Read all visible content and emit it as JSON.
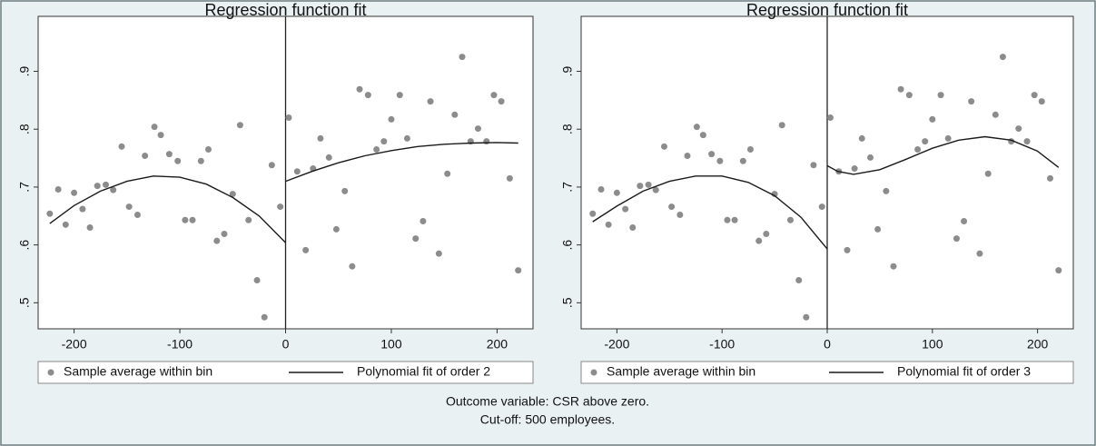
{
  "chart_data": [
    {
      "type": "scatter",
      "title": "Regression function fit",
      "xlim": [
        -234,
        234
      ],
      "ylim": [
        0.455,
        0.995
      ],
      "xticks": [
        -200,
        -100,
        0,
        100,
        200
      ],
      "yticks": [
        {
          "value": 0.5,
          "label": ".5"
        },
        {
          "value": 0.6,
          "label": ".6"
        },
        {
          "value": 0.7,
          "label": ".7"
        },
        {
          "value": 0.8,
          "label": ".8"
        },
        {
          "value": 0.9,
          "label": ".9"
        }
      ],
      "cutoff": 0,
      "legend": "bottom",
      "series": [
        {
          "name": "Sample average within bin",
          "type": "scatter",
          "color": "#8c8c8c",
          "x": [
            -223,
            -215,
            -208,
            -200,
            -192,
            -185,
            -178,
            -170,
            -163,
            -155,
            -148,
            -140,
            -133,
            -124,
            -118,
            -110,
            -102,
            -95,
            -88,
            -80,
            -73,
            -65,
            -58,
            -50,
            -43,
            -35,
            -27,
            -20,
            -13,
            -5,
            3,
            11,
            19,
            26,
            33,
            41,
            48,
            56,
            63,
            70,
            78,
            86,
            93,
            100,
            108,
            115,
            123,
            130,
            137,
            145,
            153,
            160,
            167,
            175,
            182,
            190,
            197,
            204,
            212,
            220
          ],
          "values": [
            0.654,
            0.696,
            0.635,
            0.69,
            0.662,
            0.63,
            0.702,
            0.704,
            0.695,
            0.77,
            0.666,
            0.652,
            0.754,
            0.804,
            0.79,
            0.757,
            0.745,
            0.643,
            0.643,
            0.745,
            0.765,
            0.607,
            0.619,
            0.688,
            0.807,
            0.643,
            0.539,
            0.475,
            0.738,
            0.666,
            0.82,
            0.727,
            0.591,
            0.732,
            0.784,
            0.751,
            0.627,
            0.693,
            0.563,
            0.869,
            0.859,
            0.765,
            0.779,
            0.817,
            0.859,
            0.784,
            0.611,
            0.641,
            0.848,
            0.585,
            0.723,
            0.825,
            0.925,
            0.779,
            0.801,
            0.779,
            0.859,
            0.848,
            0.715,
            0.556
          ]
        },
        {
          "name": "Polynomial fit of order 2",
          "type": "line",
          "color": "#1a1a1a",
          "x": [
            -223,
            -200,
            -175,
            -150,
            -125,
            -100,
            -75,
            -50,
            -25,
            0,
            null,
            0,
            25,
            50,
            75,
            100,
            125,
            150,
            175,
            200,
            220
          ],
          "values": [
            0.637,
            0.668,
            0.693,
            0.71,
            0.719,
            0.717,
            0.705,
            0.682,
            0.65,
            0.604,
            null,
            0.71,
            0.727,
            0.742,
            0.754,
            0.763,
            0.77,
            0.774,
            0.776,
            0.777,
            0.776
          ]
        }
      ]
    },
    {
      "type": "scatter",
      "title": "Regression function fit",
      "xlim": [
        -234,
        234
      ],
      "ylim": [
        0.455,
        0.995
      ],
      "xticks": [
        -200,
        -100,
        0,
        100,
        200
      ],
      "yticks": [
        {
          "value": 0.5,
          "label": ".5"
        },
        {
          "value": 0.6,
          "label": ".6"
        },
        {
          "value": 0.7,
          "label": ".7"
        },
        {
          "value": 0.8,
          "label": ".8"
        },
        {
          "value": 0.9,
          "label": ".9"
        }
      ],
      "cutoff": 0,
      "legend": "bottom",
      "series": [
        {
          "name": "Sample average within bin",
          "type": "scatter",
          "color": "#8c8c8c",
          "x": [
            -223,
            -215,
            -208,
            -200,
            -192,
            -185,
            -178,
            -170,
            -163,
            -155,
            -148,
            -140,
            -133,
            -124,
            -118,
            -110,
            -102,
            -95,
            -88,
            -80,
            -73,
            -65,
            -58,
            -50,
            -43,
            -35,
            -27,
            -20,
            -13,
            -5,
            3,
            11,
            19,
            26,
            33,
            41,
            48,
            56,
            63,
            70,
            78,
            86,
            93,
            100,
            108,
            115,
            123,
            130,
            137,
            145,
            153,
            160,
            167,
            175,
            182,
            190,
            197,
            204,
            212,
            220
          ],
          "values": [
            0.654,
            0.696,
            0.635,
            0.69,
            0.662,
            0.63,
            0.702,
            0.704,
            0.695,
            0.77,
            0.666,
            0.652,
            0.754,
            0.804,
            0.79,
            0.757,
            0.745,
            0.643,
            0.643,
            0.745,
            0.765,
            0.607,
            0.619,
            0.688,
            0.807,
            0.643,
            0.539,
            0.475,
            0.738,
            0.666,
            0.82,
            0.727,
            0.591,
            0.732,
            0.784,
            0.751,
            0.627,
            0.693,
            0.563,
            0.869,
            0.859,
            0.765,
            0.779,
            0.817,
            0.859,
            0.784,
            0.611,
            0.641,
            0.848,
            0.585,
            0.723,
            0.825,
            0.925,
            0.779,
            0.801,
            0.779,
            0.859,
            0.848,
            0.715,
            0.556
          ]
        },
        {
          "name": "Polynomial fit of order 3",
          "type": "line",
          "color": "#1a1a1a",
          "x": [
            -223,
            -200,
            -175,
            -150,
            -125,
            -100,
            -75,
            -50,
            -25,
            0,
            null,
            0,
            10,
            25,
            50,
            75,
            100,
            125,
            150,
            175,
            200,
            220
          ],
          "values": [
            0.64,
            0.667,
            0.693,
            0.71,
            0.719,
            0.719,
            0.708,
            0.685,
            0.648,
            0.593,
            null,
            0.737,
            0.727,
            0.722,
            0.73,
            0.748,
            0.767,
            0.781,
            0.787,
            0.781,
            0.762,
            0.734
          ]
        }
      ]
    }
  ],
  "footer": [
    "Outcome variable: CSR above zero.",
    "Cut-off: 500 employees."
  ]
}
